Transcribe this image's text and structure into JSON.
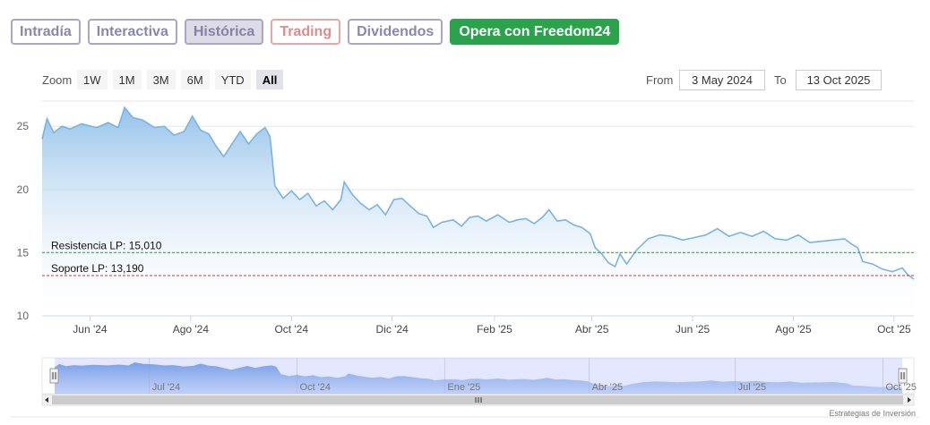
{
  "tabs": [
    {
      "label": "Intradía",
      "state": "normal"
    },
    {
      "label": "Interactiva",
      "state": "normal"
    },
    {
      "label": "Histórica",
      "state": "active"
    },
    {
      "label": "Trading",
      "state": "trading"
    },
    {
      "label": "Dividendos",
      "state": "normal"
    },
    {
      "label": "Opera con Freedom24",
      "state": "cta"
    }
  ],
  "zoom": {
    "label": "Zoom",
    "buttons": [
      "1W",
      "1M",
      "3M",
      "6M",
      "YTD",
      "All"
    ],
    "selected": "All"
  },
  "range": {
    "from_label": "From",
    "from_value": "3 May 2024",
    "to_label": "To",
    "to_value": "13 Oct 2025"
  },
  "credit": "Estrategias de Inversión",
  "colors": {
    "line": "#7ab3e2",
    "area_top": "#8fbfe9",
    "resistance": "#2f9d3c",
    "support": "#c0392b",
    "cta": "#2ba24c"
  },
  "chart_data": {
    "type": "area",
    "title": "",
    "xlabel": "",
    "ylabel": "",
    "ylim": [
      10,
      27
    ],
    "yticks": [
      10,
      15,
      20,
      25
    ],
    "xlim": [
      "2024-05-03",
      "2025-10-13"
    ],
    "x_ticks": [
      {
        "date": "2024-06-01",
        "label": "Jun '24"
      },
      {
        "date": "2024-08-01",
        "label": "Ago '24"
      },
      {
        "date": "2024-10-01",
        "label": "Oct '24"
      },
      {
        "date": "2024-12-01",
        "label": "Dic '24"
      },
      {
        "date": "2025-02-01",
        "label": "Feb '25"
      },
      {
        "date": "2025-04-01",
        "label": "Abr '25"
      },
      {
        "date": "2025-06-01",
        "label": "Jun '25"
      },
      {
        "date": "2025-08-01",
        "label": "Ago '25"
      },
      {
        "date": "2025-10-01",
        "label": "Oct '25"
      }
    ],
    "grid": true,
    "series": [
      {
        "points": [
          [
            "2024-05-03",
            24.0
          ],
          [
            "2024-05-06",
            25.6
          ],
          [
            "2024-05-10",
            24.5
          ],
          [
            "2024-05-15",
            25.0
          ],
          [
            "2024-05-20",
            24.8
          ],
          [
            "2024-05-27",
            25.2
          ],
          [
            "2024-06-05",
            24.9
          ],
          [
            "2024-06-12",
            25.3
          ],
          [
            "2024-06-18",
            24.9
          ],
          [
            "2024-06-22",
            26.5
          ],
          [
            "2024-06-27",
            25.7
          ],
          [
            "2024-07-03",
            25.5
          ],
          [
            "2024-07-10",
            24.9
          ],
          [
            "2024-07-16",
            25.0
          ],
          [
            "2024-07-22",
            24.3
          ],
          [
            "2024-07-28",
            24.6
          ],
          [
            "2024-08-02",
            25.8
          ],
          [
            "2024-08-07",
            24.7
          ],
          [
            "2024-08-12",
            24.4
          ],
          [
            "2024-08-16",
            23.5
          ],
          [
            "2024-08-21",
            22.6
          ],
          [
            "2024-08-26",
            23.6
          ],
          [
            "2024-08-31",
            24.6
          ],
          [
            "2024-09-05",
            23.6
          ],
          [
            "2024-09-10",
            24.4
          ],
          [
            "2024-09-15",
            24.9
          ],
          [
            "2024-09-18",
            24.2
          ],
          [
            "2024-09-19",
            23.0
          ],
          [
            "2024-09-21",
            20.3
          ],
          [
            "2024-09-26",
            19.3
          ],
          [
            "2024-10-01",
            19.9
          ],
          [
            "2024-10-06",
            19.2
          ],
          [
            "2024-10-11",
            19.7
          ],
          [
            "2024-10-16",
            18.7
          ],
          [
            "2024-10-21",
            19.1
          ],
          [
            "2024-10-26",
            18.4
          ],
          [
            "2024-10-31",
            19.2
          ],
          [
            "2024-11-02",
            20.6
          ],
          [
            "2024-11-07",
            19.6
          ],
          [
            "2024-11-12",
            18.9
          ],
          [
            "2024-11-17",
            18.4
          ],
          [
            "2024-11-22",
            18.8
          ],
          [
            "2024-11-27",
            18.0
          ],
          [
            "2024-12-02",
            19.2
          ],
          [
            "2024-12-07",
            19.3
          ],
          [
            "2024-12-12",
            18.7
          ],
          [
            "2024-12-17",
            18.1
          ],
          [
            "2024-12-22",
            17.9
          ],
          [
            "2024-12-26",
            17.0
          ],
          [
            "2024-12-31",
            17.4
          ],
          [
            "2025-01-07",
            17.6
          ],
          [
            "2025-01-12",
            17.1
          ],
          [
            "2025-01-17",
            17.8
          ],
          [
            "2025-01-22",
            17.9
          ],
          [
            "2025-01-27",
            17.5
          ],
          [
            "2025-02-03",
            18.0
          ],
          [
            "2025-02-10",
            17.4
          ],
          [
            "2025-02-15",
            17.6
          ],
          [
            "2025-02-20",
            17.7
          ],
          [
            "2025-02-25",
            17.3
          ],
          [
            "2025-03-02",
            17.8
          ],
          [
            "2025-03-06",
            18.4
          ],
          [
            "2025-03-11",
            17.5
          ],
          [
            "2025-03-16",
            17.6
          ],
          [
            "2025-03-21",
            17.2
          ],
          [
            "2025-03-26",
            17.0
          ],
          [
            "2025-03-31",
            16.5
          ],
          [
            "2025-04-03",
            15.4
          ],
          [
            "2025-04-07",
            14.9
          ],
          [
            "2025-04-11",
            14.2
          ],
          [
            "2025-04-15",
            13.9
          ],
          [
            "2025-04-18",
            14.9
          ],
          [
            "2025-04-22",
            14.1
          ],
          [
            "2025-04-28",
            15.2
          ],
          [
            "2025-05-05",
            16.1
          ],
          [
            "2025-05-12",
            16.4
          ],
          [
            "2025-05-19",
            16.3
          ],
          [
            "2025-05-26",
            16.0
          ],
          [
            "2025-06-02",
            16.2
          ],
          [
            "2025-06-09",
            16.4
          ],
          [
            "2025-06-16",
            16.9
          ],
          [
            "2025-06-23",
            16.3
          ],
          [
            "2025-06-30",
            16.6
          ],
          [
            "2025-07-07",
            16.3
          ],
          [
            "2025-07-14",
            16.7
          ],
          [
            "2025-07-21",
            16.1
          ],
          [
            "2025-07-28",
            16.0
          ],
          [
            "2025-08-04",
            16.4
          ],
          [
            "2025-08-11",
            15.8
          ],
          [
            "2025-08-18",
            15.9
          ],
          [
            "2025-08-25",
            16.0
          ],
          [
            "2025-09-01",
            16.1
          ],
          [
            "2025-09-05",
            15.7
          ],
          [
            "2025-09-09",
            15.4
          ],
          [
            "2025-09-12",
            14.3
          ],
          [
            "2025-09-18",
            14.1
          ],
          [
            "2025-09-24",
            13.7
          ],
          [
            "2025-09-30",
            13.5
          ],
          [
            "2025-10-06",
            13.8
          ],
          [
            "2025-10-09",
            13.3
          ],
          [
            "2025-10-13",
            12.9
          ]
        ]
      }
    ],
    "annotations": [
      {
        "label": "Resistencia LP: 15,010",
        "value": 15.01,
        "color": "#2f9d3c"
      },
      {
        "label": "Soporte LP: 13,190",
        "value": 13.19,
        "color": "#c0392b"
      }
    ],
    "navigator": {
      "ticks": [
        {
          "date": "2024-07-01",
          "label": "Jul '24"
        },
        {
          "date": "2024-10-01",
          "label": "Oct '24"
        },
        {
          "date": "2025-01-01",
          "label": "Ene '25"
        },
        {
          "date": "2025-04-01",
          "label": "Abr '25"
        },
        {
          "date": "2025-07-01",
          "label": "Jul '25"
        },
        {
          "date": "2025-10-01",
          "label": "Oct '25"
        }
      ]
    }
  }
}
